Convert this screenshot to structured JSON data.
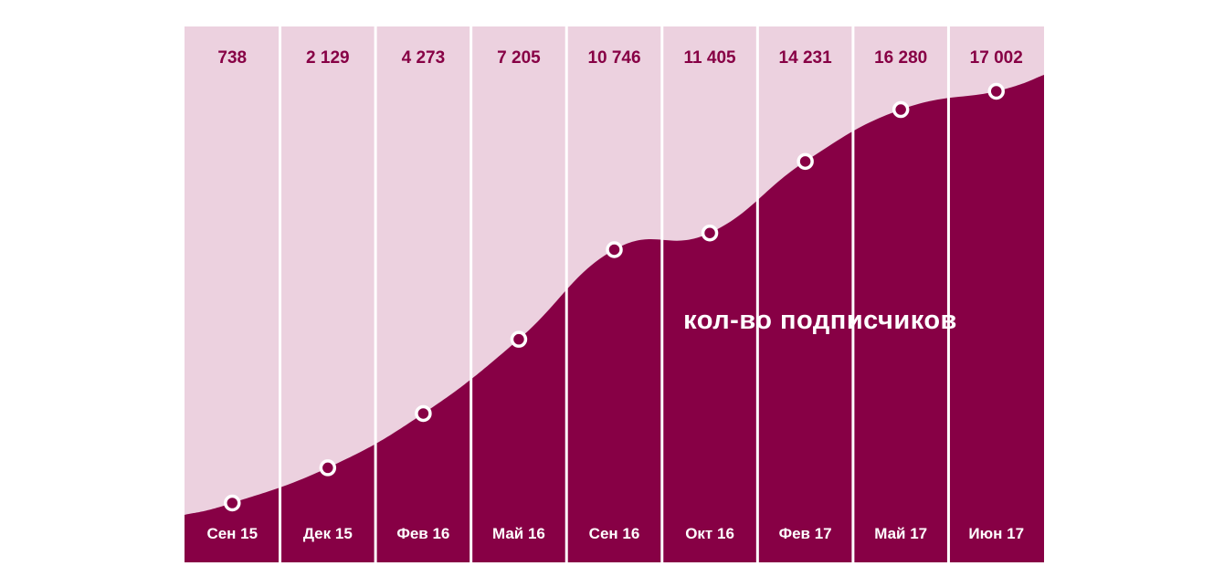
{
  "chart_data": {
    "type": "area",
    "categories": [
      "Сен 15",
      "Дек 15",
      "Фев 16",
      "Май 16",
      "Сен 16",
      "Окт 16",
      "Фев 17",
      "Май 17",
      "Июн 17"
    ],
    "value_labels": [
      "738",
      "2 129",
      "4 273",
      "7 205",
      "10 746",
      "11 405",
      "14 231",
      "16 280",
      "17 002"
    ],
    "values": [
      738,
      2129,
      4273,
      7205,
      10746,
      11405,
      14231,
      16280,
      17002
    ],
    "series_label": "кол-во подписчиков",
    "ylim": [
      -2000,
      18000
    ],
    "grid": true,
    "colors": {
      "background_band": "#ecd1df",
      "area_fill": "#870045",
      "value_text": "#870045",
      "category_text": "#ffffff",
      "divider": "#ffffff",
      "marker_stroke": "#ffffff"
    }
  }
}
